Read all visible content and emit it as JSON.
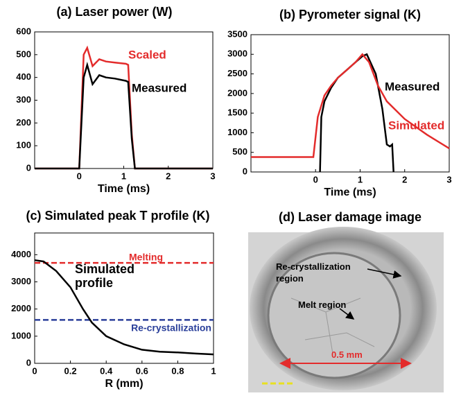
{
  "chart_data": [
    {
      "type": "line",
      "title": "(a) Laser power (W)",
      "xlabel": "Time (ms)",
      "xlim": [
        -1,
        3
      ],
      "ylim": [
        0,
        600
      ],
      "xticks": [
        0,
        1,
        2,
        3
      ],
      "yticks": [
        0,
        100,
        200,
        300,
        400,
        500,
        600
      ],
      "series": [
        {
          "name": "Scaled",
          "color": "#e32b2b",
          "x": [
            -1,
            0,
            0.05,
            0.1,
            0.18,
            0.3,
            0.45,
            0.6,
            0.8,
            1.05,
            1.1,
            1.18,
            1.25,
            3
          ],
          "values": [
            0,
            0,
            250,
            500,
            530,
            450,
            480,
            470,
            465,
            460,
            455,
            150,
            0,
            0
          ]
        },
        {
          "name": "Measured",
          "color": "#000000",
          "x": [
            -1,
            0,
            0.05,
            0.1,
            0.18,
            0.3,
            0.45,
            0.6,
            0.8,
            1.05,
            1.1,
            1.18,
            1.25,
            3
          ],
          "values": [
            0,
            0,
            200,
            400,
            455,
            370,
            410,
            400,
            395,
            385,
            380,
            130,
            0,
            0
          ]
        }
      ]
    },
    {
      "type": "line",
      "title": "(b) Pyrometer signal (K)",
      "xlabel": "Time (ms)",
      "xlim": [
        -1.45,
        3
      ],
      "ylim": [
        0,
        3500
      ],
      "xticks": [
        0,
        1,
        2,
        3
      ],
      "yticks": [
        0,
        500,
        1000,
        1500,
        2000,
        2500,
        3000,
        3500
      ],
      "series": [
        {
          "name": "Measured",
          "color": "#000000",
          "x": [
            0.1,
            0.13,
            0.2,
            0.35,
            0.5,
            0.7,
            0.9,
            1.05,
            1.15,
            1.35,
            1.5,
            1.6,
            1.67,
            1.72,
            1.75
          ],
          "values": [
            0,
            1400,
            1800,
            2150,
            2400,
            2600,
            2800,
            2950,
            3000,
            2500,
            1600,
            700,
            650,
            700,
            0
          ]
        },
        {
          "name": "Simulated",
          "color": "#e32b2b",
          "x": [
            -1.45,
            -0.05,
            0.05,
            0.2,
            0.35,
            0.5,
            0.7,
            0.9,
            1.05,
            1.2,
            1.4,
            1.6,
            2.0,
            2.5,
            3
          ],
          "values": [
            380,
            380,
            1400,
            1950,
            2200,
            2400,
            2600,
            2800,
            3000,
            2800,
            2200,
            1800,
            1350,
            950,
            600
          ]
        }
      ]
    },
    {
      "type": "line",
      "title": "(c) Simulated peak T profile (K)",
      "xlabel": "R (mm)",
      "xlim": [
        0,
        1
      ],
      "ylim": [
        0,
        4800
      ],
      "xticks": [
        0,
        0.2,
        0.4,
        0.6,
        0.8,
        1
      ],
      "yticks": [
        0,
        1000,
        2000,
        3000,
        4000
      ],
      "series": [
        {
          "name": "Simulated profile",
          "color": "#000000",
          "x": [
            0,
            0.05,
            0.12,
            0.2,
            0.27,
            0.32,
            0.4,
            0.5,
            0.6,
            0.7,
            0.8,
            0.9,
            1
          ],
          "values": [
            3800,
            3750,
            3400,
            2800,
            2000,
            1500,
            1000,
            700,
            500,
            430,
            400,
            360,
            330
          ]
        }
      ],
      "reference_lines": [
        {
          "label": "Melting",
          "value": 3700,
          "color": "#e32b2b"
        },
        {
          "label": "Re-crystallization",
          "value": 1600,
          "color": "#2a3f9a"
        }
      ]
    },
    {
      "type": "image",
      "title": "(d) Laser damage image",
      "annotations": [
        "Re-crystallization region",
        "Melt region",
        "0.5 mm"
      ]
    }
  ]
}
